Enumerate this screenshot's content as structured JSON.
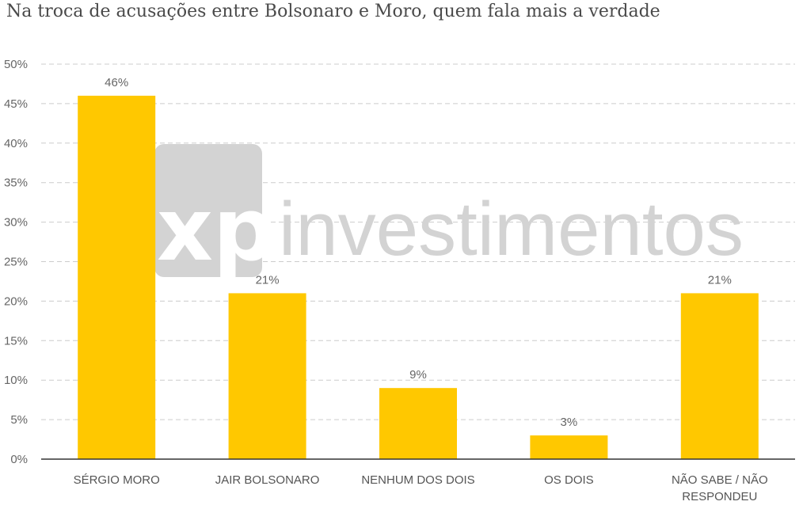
{
  "chart_data": {
    "type": "bar",
    "title": "Na troca de acusações entre Bolsonaro e Moro, quem fala mais a verdade",
    "categories": [
      "SÉRGIO MORO",
      "JAIR BOLSONARO",
      "NENHUM DOS DOIS",
      "OS DOIS",
      "NÃO SABE / NÃO RESPONDEU"
    ],
    "category_lines": [
      [
        "SÉRGIO MORO"
      ],
      [
        "JAIR BOLSONARO"
      ],
      [
        "NENHUM DOS DOIS"
      ],
      [
        "OS DOIS"
      ],
      [
        "NÃO SABE / NÃO",
        "RESPONDEU"
      ]
    ],
    "values": [
      46,
      21,
      9,
      3,
      21
    ],
    "data_labels": [
      "46%",
      "21%",
      "9%",
      "3%",
      "21%"
    ],
    "yticks": [
      "0%",
      "5%",
      "10%",
      "15%",
      "20%",
      "25%",
      "30%",
      "35%",
      "40%",
      "45%",
      "50%"
    ],
    "ylim": [
      0,
      50
    ],
    "grid": true,
    "bar_color": "#FFC800",
    "xlabel": "",
    "ylabel": ""
  },
  "watermark": {
    "mark": "xp",
    "text": "investimentos"
  }
}
